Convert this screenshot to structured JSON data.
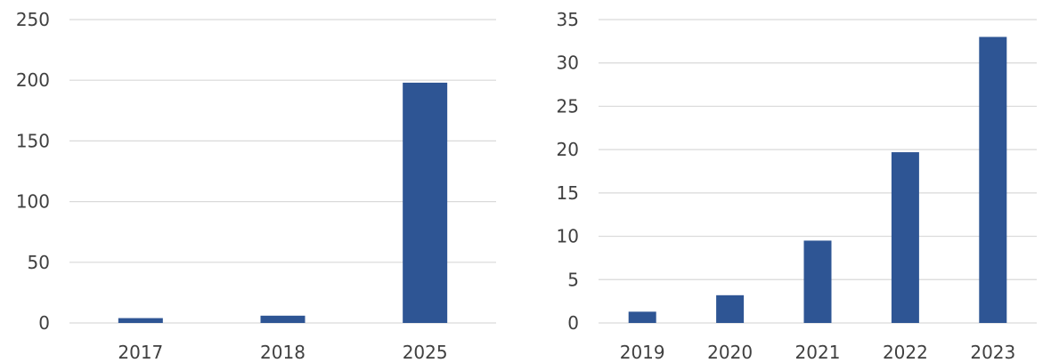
{
  "colors": {
    "bar": "#2e5594",
    "grid": "#d9d9d9",
    "text": "#404040"
  },
  "chart_data": [
    {
      "type": "bar",
      "categories": [
        "2017",
        "2018",
        "2025"
      ],
      "values": [
        4,
        6,
        198
      ],
      "ylim": [
        0,
        250
      ],
      "yticks": [
        "0",
        "50",
        "100",
        "150",
        "200",
        "250"
      ],
      "grid": true
    },
    {
      "type": "bar",
      "categories": [
        "2019",
        "2020",
        "2021",
        "2022",
        "2023"
      ],
      "values": [
        1.3,
        3.2,
        9.5,
        19.7,
        33
      ],
      "ylim": [
        0,
        35
      ],
      "yticks": [
        "0",
        "5",
        "10",
        "15",
        "20",
        "25",
        "30",
        "35"
      ],
      "grid": true
    }
  ]
}
